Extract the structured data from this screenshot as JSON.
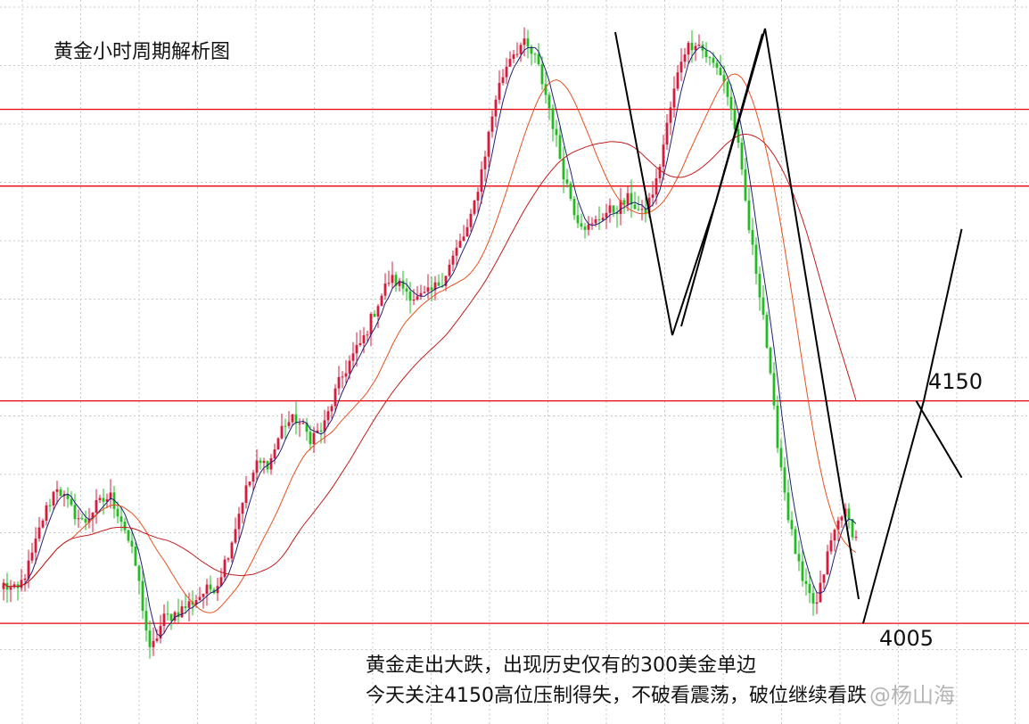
{
  "title": "黄金小时周期解析图",
  "annotations": {
    "resistance_label": "4150",
    "support_label": "4005",
    "note_line_1": "黄金走出大跌，出现历史仅有的300美金单边",
    "note_line_2": "今天关注4150高位压制得失，不破看震荡，破位继续看跌",
    "watermark": "@杨山海"
  },
  "colors": {
    "background": "#ffffff",
    "grid": "#c8c8c8",
    "level_line": "#e8000b",
    "candle_up": "#d81b3c",
    "candle_down": "#22bb22",
    "ma_fast": "#1f1f7a",
    "ma_mid": "#e8501f",
    "ma_slow": "#c21d1d",
    "trend_lines": "#000000"
  },
  "chart_data": {
    "type": "candlestick",
    "title": "黄金小时周期解析图",
    "xlabel": "",
    "ylabel": "",
    "grid": true,
    "ylim": [
      3958,
      4395
    ],
    "horizontal_levels": [
      4005,
      4150,
      4290,
      4340
    ],
    "labeled_levels": {
      "4150": "4150",
      "4005": "4005"
    },
    "price_anchors": [
      4030,
      4025,
      4045,
      4075,
      4095,
      4080,
      4070,
      4082,
      4088,
      4070,
      4040,
      3985,
      4008,
      4012,
      4018,
      4025,
      4030,
      4055,
      4088,
      4108,
      4110,
      4135,
      4138,
      4126,
      4132,
      4158,
      4176,
      4190,
      4212,
      4230,
      4224,
      4216,
      4220,
      4230,
      4248,
      4265,
      4305,
      4350,
      4375,
      4383,
      4372,
      4340,
      4300,
      4270,
      4262,
      4272,
      4275,
      4282,
      4270,
      4292,
      4338,
      4378,
      4385,
      4372,
      4362,
      4325,
      4260,
      4210,
      4130,
      4070,
      4030,
      4015,
      4055,
      4080,
      4060
    ],
    "forecast_path": [
      {
        "bar": 0,
        "price": 4005
      },
      {
        "bar": 8,
        "price": 4150
      },
      {
        "bar": 13,
        "price": 4262
      }
    ],
    "forecast_alt": [
      {
        "bar": 7,
        "price": 4150
      },
      {
        "bar": 13,
        "price": 4100
      }
    ]
  }
}
